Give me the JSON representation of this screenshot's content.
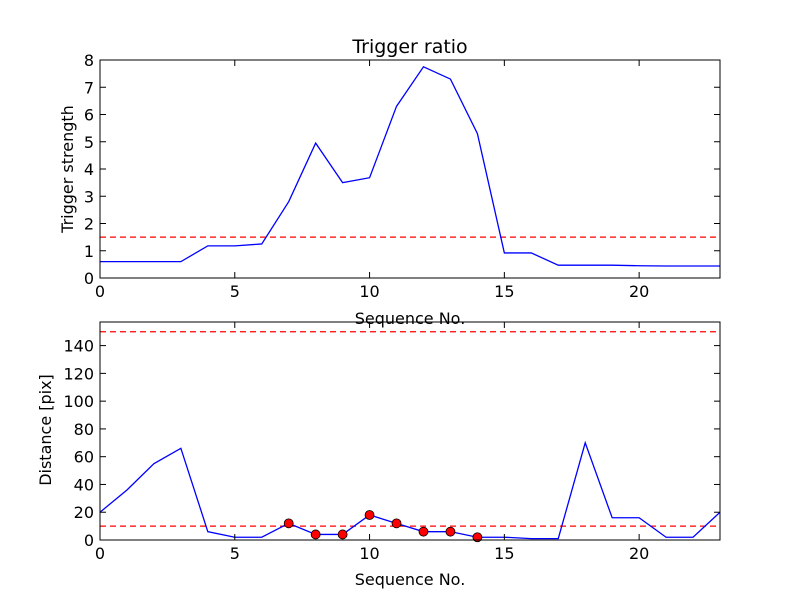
{
  "chart_data": [
    {
      "type": "line",
      "title": "Trigger ratio",
      "xlabel": "Sequence No.",
      "ylabel": "Trigger strength",
      "xlim": [
        0,
        23
      ],
      "ylim": [
        0,
        8
      ],
      "xticks": [
        0,
        5,
        10,
        15,
        20
      ],
      "yticks": [
        0,
        1,
        2,
        3,
        4,
        5,
        6,
        7,
        8
      ],
      "grid": false,
      "series": [
        {
          "color": "#0000ff",
          "style": "solid",
          "x": [
            0,
            1,
            2,
            3,
            4,
            5,
            6,
            7,
            8,
            9,
            10,
            11,
            12,
            13,
            14,
            15,
            16,
            17,
            18,
            19,
            20,
            21,
            22,
            23
          ],
          "y": [
            0.6,
            0.6,
            0.6,
            0.6,
            1.18,
            1.18,
            1.25,
            2.8,
            4.95,
            3.5,
            3.68,
            6.3,
            7.75,
            7.3,
            5.3,
            0.92,
            0.92,
            0.47,
            0.47,
            0.47,
            0.45,
            0.44,
            0.44,
            0.44
          ]
        }
      ],
      "threshold": {
        "y": 1.5,
        "color": "#ff0000",
        "style": "dashed"
      }
    },
    {
      "type": "line",
      "title": "",
      "xlabel": "Sequence No.",
      "ylabel": "Distance [pix]",
      "xlim": [
        0,
        23
      ],
      "ylim": [
        0,
        157
      ],
      "xticks": [
        0,
        5,
        10,
        15,
        20
      ],
      "yticks": [
        0,
        20,
        40,
        60,
        80,
        100,
        120,
        140
      ],
      "grid": false,
      "series": [
        {
          "color": "#0000ff",
          "style": "solid",
          "x": [
            0,
            1,
            2,
            3,
            4,
            5,
            6,
            7,
            8,
            9,
            10,
            11,
            12,
            13,
            14,
            15,
            16,
            17,
            18,
            19,
            20,
            21,
            22,
            23
          ],
          "y": [
            20,
            36,
            55,
            66,
            6,
            2,
            2,
            12,
            4,
            4,
            18,
            12,
            6,
            6,
            2,
            2,
            1,
            1,
            70,
            16,
            16,
            2,
            2,
            20
          ]
        }
      ],
      "markers": {
        "color": "#ff0000",
        "edge": "#000000",
        "x": [
          7,
          8,
          9,
          10,
          11,
          12,
          13,
          14
        ],
        "y": [
          12,
          4,
          4,
          18,
          12,
          6,
          6,
          2
        ]
      },
      "thresholds": [
        {
          "y": 10,
          "color": "#ff0000",
          "style": "dashed"
        },
        {
          "y": 150,
          "color": "#ff0000",
          "style": "dashed"
        }
      ]
    }
  ]
}
